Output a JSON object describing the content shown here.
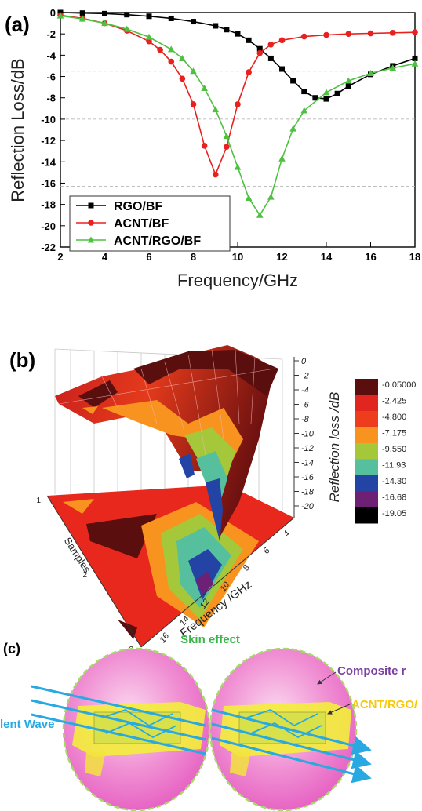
{
  "panel_a": {
    "label": "(a)",
    "chart_data": {
      "type": "line",
      "xlabel": "Frequency/GHz",
      "ylabel": "Reflection Loss/dB",
      "xlim": [
        2,
        18
      ],
      "ylim": [
        -22,
        0
      ],
      "xticks": [
        2,
        4,
        6,
        8,
        10,
        12,
        14,
        16,
        18
      ],
      "yticks": [
        0,
        -2,
        -4,
        -6,
        -8,
        -10,
        -12,
        -14,
        -16,
        -18,
        -20,
        -22
      ],
      "grid": false,
      "legend_position": "bottom-left",
      "reference_lines": [
        -5.5,
        -10,
        -16.3
      ],
      "series": [
        {
          "name": "RGO/BF",
          "color": "#000000",
          "marker": "square",
          "x": [
            2,
            3,
            4,
            5,
            6,
            7,
            8,
            9,
            9.5,
            10,
            10.5,
            11,
            11.5,
            12,
            12.5,
            13,
            13.5,
            14,
            14.5,
            15,
            16,
            17,
            18
          ],
          "y": [
            0,
            -0.05,
            -0.1,
            -0.2,
            -0.35,
            -0.55,
            -0.85,
            -1.25,
            -1.6,
            -2.0,
            -2.6,
            -3.4,
            -4.3,
            -5.3,
            -6.4,
            -7.4,
            -8.0,
            -8.1,
            -7.6,
            -6.9,
            -5.8,
            -5.0,
            -4.3
          ]
        },
        {
          "name": "ACNT/BF",
          "color": "#e8201e",
          "marker": "circle",
          "x": [
            2,
            3,
            4,
            5,
            6,
            6.5,
            7,
            7.5,
            8,
            8.5,
            9,
            9.5,
            10,
            10.5,
            11,
            11.5,
            12,
            13,
            14,
            15,
            16,
            17,
            18
          ],
          "y": [
            -0.25,
            -0.55,
            -1.0,
            -1.7,
            -2.7,
            -3.5,
            -4.6,
            -6.2,
            -8.6,
            -12.5,
            -15.2,
            -12.6,
            -8.6,
            -5.6,
            -3.8,
            -3.0,
            -2.6,
            -2.25,
            -2.1,
            -2.0,
            -1.95,
            -1.9,
            -1.85
          ]
        },
        {
          "name": "ACNT/RGO/BF",
          "color": "#4fc042",
          "marker": "triangle",
          "x": [
            2,
            3,
            4,
            5,
            6,
            7,
            7.5,
            8,
            8.5,
            9,
            9.5,
            10,
            10.5,
            11,
            11.5,
            12,
            12.5,
            13,
            14,
            15,
            16,
            17,
            18
          ],
          "y": [
            -0.3,
            -0.6,
            -1.0,
            -1.55,
            -2.3,
            -3.45,
            -4.3,
            -5.5,
            -7.1,
            -9.1,
            -11.6,
            -14.5,
            -17.4,
            -19.0,
            -17.3,
            -13.7,
            -10.9,
            -9.2,
            -7.5,
            -6.4,
            -5.7,
            -5.2,
            -4.8
          ]
        }
      ]
    }
  },
  "panel_b": {
    "label": "(b)",
    "chart_data": {
      "type": "heatmap",
      "xlabel": "Frequency /GHz",
      "ylabel": "Samples",
      "zlabel": "Reflection loss /dB",
      "x_ticks": [
        "4",
        "6",
        "8",
        "10",
        "12",
        "14",
        "16",
        "18"
      ],
      "y_ticks": [
        "1",
        "2",
        "3"
      ],
      "z_ticks": [
        "0",
        "-2",
        "-4",
        "-6",
        "-8",
        "-10",
        "-12",
        "-14",
        "-16",
        "-18",
        "-20"
      ],
      "colorbar": {
        "levels": [
          "-0.05000",
          "-2.425",
          "-4.800",
          "-7.175",
          "-9.550",
          "-11.93",
          "-14.30",
          "-16.68",
          "-19.05"
        ],
        "colors": [
          "#5a0e0e",
          "#e12620",
          "#ee3d1c",
          "#f7931e",
          "#a5c83a",
          "#56bf9e",
          "#2444a5",
          "#6e2075",
          "#000000"
        ]
      }
    }
  },
  "panel_c": {
    "label": "(c)",
    "skin_effect": "Skin effect",
    "composite": "Composite r",
    "acnt_rgo": "ACNT/RGO/",
    "wave": "lent Wave"
  }
}
